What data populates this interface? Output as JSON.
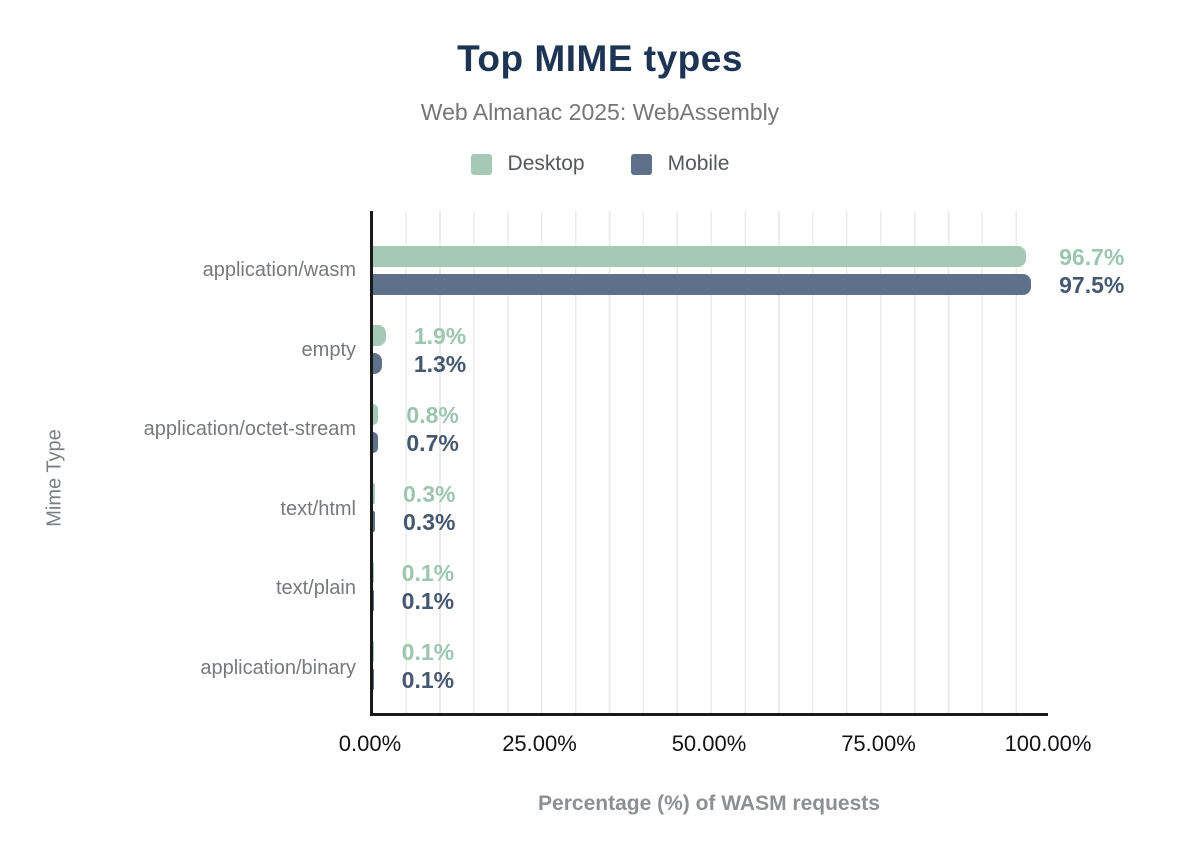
{
  "chart_data": {
    "type": "bar",
    "orientation": "horizontal",
    "title": "Top MIME types",
    "subtitle": "Web Almanac 2025: WebAssembly",
    "xlabel": "Percentage (%) of WASM requests",
    "ylabel": "Mime Type",
    "xlim": [
      0,
      100
    ],
    "x_ticks": [
      "0.00%",
      "25.00%",
      "50.00%",
      "75.00%",
      "100.00%"
    ],
    "grid": "vertical light gridlines every 5%",
    "legend_position": "top",
    "categories": [
      "application/wasm",
      "empty",
      "application/octet-stream",
      "text/html",
      "text/plain",
      "application/binary"
    ],
    "series": [
      {
        "name": "Desktop",
        "color": "#a6c9b7",
        "label_color": "#9dc5b0",
        "values": [
          96.7,
          1.9,
          0.8,
          0.3,
          0.1,
          0.1
        ],
        "labels": [
          "96.7%",
          "1.9%",
          "0.8%",
          "0.3%",
          "0.1%",
          "0.1%"
        ]
      },
      {
        "name": "Mobile",
        "color": "#5f708a",
        "label_color": "#465870",
        "values": [
          97.5,
          1.3,
          0.7,
          0.3,
          0.1,
          0.1
        ],
        "labels": [
          "97.5%",
          "1.3%",
          "0.7%",
          "0.3%",
          "0.1%",
          "0.1%"
        ]
      }
    ],
    "colors": {
      "title": "#1d3453",
      "subtitle": "#767676",
      "axis_line": "#1a1a1a",
      "gridline": "#ececec",
      "category_label": "#77797e",
      "tick_label": "#121316",
      "axis_title": "#8d8f93"
    }
  }
}
